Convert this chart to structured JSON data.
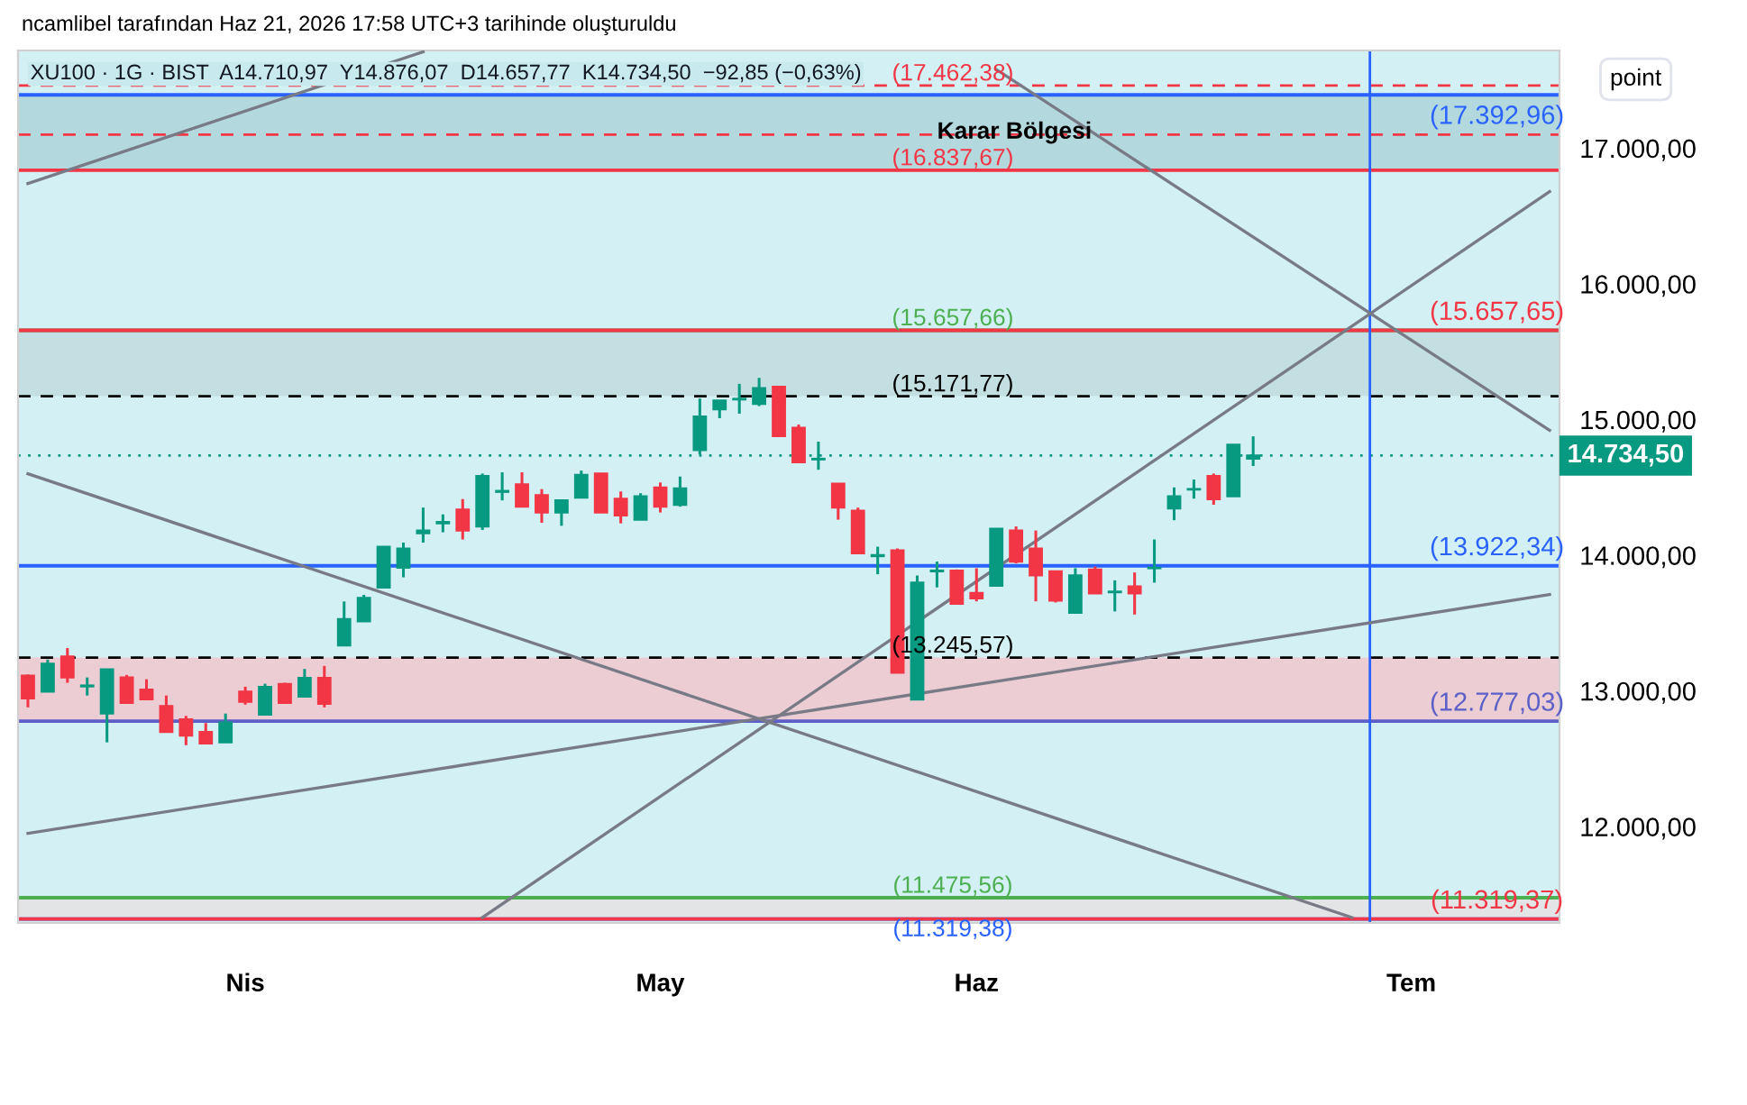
{
  "chart_data": {
    "type": "candlestick",
    "categories": [
      null,
      null,
      null,
      null,
      null,
      null,
      null,
      null,
      null,
      null,
      null,
      "Nis",
      null,
      null,
      null,
      null,
      null,
      null,
      null,
      null,
      null,
      null,
      null,
      null,
      null,
      null,
      null,
      null,
      null,
      null,
      null,
      null,
      "May",
      null,
      null,
      null,
      null,
      null,
      null,
      null,
      null,
      null,
      null,
      null,
      null,
      null,
      null,
      null,
      "Haz",
      null,
      null,
      null,
      null,
      null,
      null,
      null,
      null,
      null,
      null,
      null,
      null,
      null,
      null,
      null,
      null,
      null,
      null,
      null,
      null,
      null,
      "Tem",
      null,
      null,
      null,
      null,
      null,
      null,
      null
    ],
    "ohlc": [
      [
        13112,
        13121,
        12879,
        12945
      ],
      [
        12994,
        13231,
        12994,
        13200
      ],
      [
        13254,
        13316,
        13060,
        13099
      ],
      [
        13033,
        13099,
        12966,
        13040
      ],
      [
        12834,
        13159,
        12621,
        13159
      ],
      [
        13099,
        13118,
        12904,
        12912
      ],
      [
        13010,
        13086,
        12938,
        12938
      ],
      [
        12889,
        12966,
        12698,
        12698
      ],
      [
        12790,
        12816,
        12600,
        12670
      ],
      [
        12697,
        12763,
        12613,
        12613
      ],
      [
        12621,
        12833,
        12621,
        12767
      ],
      [
        12995,
        13031,
        12899,
        12920
      ],
      [
        12826,
        13053,
        12818,
        13030
      ],
      [
        13051,
        13060,
        12912,
        12912
      ],
      [
        12958,
        13162,
        12958,
        13096
      ],
      [
        13096,
        13184,
        12879,
        12905
      ],
      [
        13335,
        13659,
        13335,
        13530
      ],
      [
        13512,
        13708,
        13512,
        13685
      ],
      [
        13762,
        14063,
        13762,
        14063
      ],
      [
        13908,
        14093,
        13837,
        14050
      ],
      [
        14162,
        14351,
        14093,
        14182
      ],
      [
        14235,
        14301,
        14169,
        14245
      ],
      [
        14337,
        14414,
        14116,
        14182
      ],
      [
        14212,
        14602,
        14186,
        14584
      ],
      [
        14467,
        14611,
        14404,
        14474
      ],
      [
        14523,
        14611,
        14358,
        14358
      ],
      [
        14443,
        14487,
        14239,
        14315
      ],
      [
        14315,
        14404,
        14217,
        14404
      ],
      [
        14425,
        14624,
        14425,
        14593
      ],
      [
        14603,
        14603,
        14315,
        14315
      ],
      [
        14417,
        14470,
        14235,
        14293
      ],
      [
        14262,
        14457,
        14262,
        14434
      ],
      [
        14500,
        14536,
        14315,
        14358
      ],
      [
        14372,
        14580,
        14358,
        14492
      ],
      [
        14775,
        15155,
        14743,
        15022
      ],
      [
        15075,
        15141,
        15010,
        15141
      ],
      [
        15148,
        15263,
        15043,
        15153
      ],
      [
        15116,
        15307,
        15099,
        15231
      ],
      [
        15241,
        15241,
        14878,
        14878
      ],
      [
        14940,
        14963,
        14685,
        14685
      ],
      [
        14706,
        14837,
        14630,
        14711
      ],
      [
        14527,
        14527,
        14262,
        14351
      ],
      [
        14328,
        14351,
        14014,
        14014
      ],
      [
        13993,
        14063,
        13860,
        14001
      ],
      [
        14036,
        14050,
        13134,
        13134
      ],
      [
        12936,
        13851,
        12936,
        13798
      ],
      [
        13881,
        13953,
        13763,
        13887
      ],
      [
        13887,
        13895,
        13643,
        13643
      ],
      [
        13722,
        13904,
        13660,
        13682
      ],
      [
        13775,
        14196,
        13775,
        14196
      ],
      [
        14182,
        14212,
        13940,
        13953
      ],
      [
        14050,
        14182,
        13660,
        13851
      ],
      [
        13881,
        13887,
        13652,
        13665
      ],
      [
        13576,
        13904,
        13576,
        13851
      ],
      [
        13895,
        13917,
        13718,
        13718
      ],
      [
        13727,
        13815,
        13586,
        13732
      ],
      [
        13771,
        13873,
        13563,
        13718
      ],
      [
        13904,
        14116,
        13798,
        13908
      ],
      [
        14345,
        14500,
        14258,
        14434
      ],
      [
        14484,
        14558,
        14417,
        14488
      ],
      [
        14584,
        14602,
        14372,
        14412
      ],
      [
        14434,
        14815,
        14434,
        14815
      ],
      [
        14710.97,
        14876.07,
        14657.77,
        14734.5
      ],
      null,
      null,
      null,
      null,
      null,
      null,
      null,
      null,
      null,
      null,
      null,
      null,
      null,
      null,
      null
    ],
    "colors": [
      "#f23645",
      "#089981",
      "#f23645",
      "#089981",
      "#089981",
      "#f23645",
      "#f23645",
      "#f23645",
      "#f23645",
      "#f23645",
      "#089981",
      "#f23645",
      "#089981",
      "#f23645",
      "#089981",
      "#f23645",
      "#089981",
      "#089981",
      "#089981",
      "#089981",
      "#089981",
      "#089981",
      "#f23645",
      "#089981",
      "#089981",
      "#f23645",
      "#f23645",
      "#089981",
      "#089981",
      "#f23645",
      "#f23645",
      "#089981",
      "#f23645",
      "#089981",
      "#089981",
      "#089981",
      "#089981",
      "#089981",
      "#f23645",
      "#f23645",
      "#089981",
      "#f23645",
      "#f23645",
      "#089981",
      "#f23645",
      "#089981",
      "#089981",
      "#f23645",
      "#f23645",
      "#089981",
      "#f23645",
      "#f23645",
      "#f23645",
      "#089981",
      "#f23645",
      "#089981",
      "#f23645",
      "#089981",
      "#089981",
      "#089981",
      "#f23645",
      "#089981",
      "#089981",
      null,
      null,
      null,
      null,
      null,
      null,
      null,
      null,
      null,
      null,
      null,
      null,
      null,
      null,
      null
    ],
    "series": [
      {
        "type": "line",
        "values": [
          16740,
          null,
          null,
          null,
          null,
          null,
          null,
          null,
          null,
          null,
          null,
          null,
          null,
          null,
          null,
          null,
          null,
          null,
          null,
          null,
          17710,
          null,
          null,
          null,
          null,
          null,
          null,
          null,
          null,
          null,
          null,
          null,
          null,
          null,
          null,
          null,
          null,
          null,
          null,
          null,
          null,
          null,
          null,
          null,
          null,
          null,
          null,
          null,
          null,
          null,
          null,
          null,
          null,
          null,
          null,
          null,
          null,
          null,
          null,
          null,
          null,
          null,
          null,
          null,
          null,
          null,
          null,
          null,
          null,
          null,
          null,
          null,
          null,
          null,
          null,
          null,
          null,
          null
        ],
        "color": "#787b86"
      },
      {
        "type": "line",
        "values": [
          14600,
          null,
          null,
          null,
          null,
          null,
          null,
          null,
          null,
          null,
          null,
          null,
          null,
          null,
          null,
          null,
          null,
          null,
          null,
          null,
          null,
          null,
          null,
          null,
          null,
          null,
          null,
          null,
          null,
          null,
          null,
          null,
          null,
          null,
          null,
          null,
          null,
          null,
          null,
          null,
          null,
          null,
          null,
          null,
          null,
          null,
          null,
          null,
          null,
          null,
          null,
          null,
          null,
          null,
          null,
          null,
          null,
          null,
          null,
          null,
          null,
          null,
          null,
          null,
          null,
          null,
          null,
          11330,
          null,
          null,
          null,
          null,
          null,
          null,
          null,
          null,
          null,
          null
        ],
        "color": "#787b86"
      },
      {
        "type": "line",
        "values": [
          null,
          null,
          null,
          null,
          null,
          null,
          null,
          null,
          null,
          null,
          null,
          null,
          null,
          null,
          null,
          null,
          null,
          null,
          null,
          null,
          null,
          null,
          null,
          11330,
          null,
          null,
          null,
          null,
          null,
          null,
          null,
          null,
          null,
          null,
          null,
          null,
          null,
          null,
          null,
          null,
          null,
          null,
          null,
          null,
          null,
          null,
          null,
          null,
          null,
          null,
          null,
          null,
          null,
          null,
          null,
          null,
          null,
          null,
          null,
          null,
          null,
          null,
          null,
          null,
          null,
          null,
          null,
          null,
          null,
          null,
          null,
          null,
          null,
          null,
          null,
          null,
          null,
          16680
        ],
        "color": "#787b86"
      },
      {
        "type": "line",
        "values": [
          11950,
          null,
          null,
          null,
          null,
          null,
          null,
          null,
          null,
          null,
          null,
          null,
          null,
          null,
          null,
          null,
          null,
          null,
          null,
          null,
          null,
          null,
          null,
          null,
          null,
          null,
          null,
          null,
          null,
          null,
          null,
          null,
          null,
          null,
          null,
          null,
          null,
          null,
          null,
          null,
          null,
          null,
          null,
          null,
          null,
          null,
          null,
          null,
          null,
          null,
          null,
          null,
          null,
          null,
          null,
          null,
          null,
          null,
          null,
          null,
          null,
          null,
          null,
          null,
          null,
          null,
          null,
          null,
          null,
          null,
          null,
          null,
          null,
          null,
          null,
          null,
          null,
          13710
        ],
        "color": "#787b86"
      },
      {
        "type": "line",
        "values": [
          null,
          null,
          null,
          null,
          null,
          null,
          null,
          null,
          null,
          null,
          null,
          null,
          null,
          null,
          null,
          null,
          null,
          null,
          null,
          null,
          null,
          null,
          null,
          null,
          null,
          null,
          null,
          null,
          null,
          null,
          null,
          null,
          null,
          null,
          null,
          null,
          null,
          null,
          null,
          null,
          null,
          null,
          null,
          null,
          null,
          null,
          null,
          null,
          null,
          17580,
          null,
          null,
          null,
          null,
          null,
          null,
          null,
          null,
          null,
          null,
          null,
          null,
          null,
          null,
          null,
          null,
          null,
          null,
          null,
          null,
          null,
          null,
          null,
          null,
          null,
          null,
          null,
          14920
        ],
        "color": "#787b86"
      }
    ],
    "ylim": [
      11290,
      17720
    ],
    "yticks": [
      {
        "value": 12000,
        "label": "12.000,00"
      },
      {
        "value": 13000,
        "label": "13.000,00"
      },
      {
        "value": 14000,
        "label": "14.000,00"
      },
      {
        "value": 15000,
        "label": "15.000,00"
      },
      {
        "value": 16000,
        "label": "16.000,00"
      },
      {
        "value": 17000,
        "label": "17.000,00"
      }
    ],
    "bands": [
      {
        "axis": "y",
        "from": 16837.67,
        "to": 17392.96,
        "label": "Karar Bölgesi",
        "color": "#b3d9df"
      },
      {
        "axis": "y",
        "from": 15171.77,
        "to": 15657.66,
        "color": "#c3dfe2"
      },
      {
        "axis": "y",
        "from": 12777.03,
        "to": 13245.57,
        "color": "#eccdd4"
      },
      {
        "axis": "y",
        "from": 11319.38,
        "to": 11475.56,
        "color": "#e2e4e6"
      }
    ],
    "ref_lines": [
      {
        "axis": "y",
        "value": 17462.38,
        "label": "(17.462,38)",
        "color": "#f23645",
        "line_style": "dashed"
      },
      {
        "axis": "y",
        "value": 17392.96,
        "label": "(17.392,96)",
        "color": "#2962ff",
        "line_style": "solid"
      },
      {
        "axis": "y",
        "value": 17100,
        "color": "#f23645",
        "line_style": "dashed"
      },
      {
        "axis": "y",
        "value": 16837.67,
        "label": "(16.837,67)",
        "color": "#f23645",
        "line_style": "solid"
      },
      {
        "axis": "y",
        "value": 15657.66,
        "label": "(15.657,66)",
        "color": "#4caf50",
        "line_style": "solid"
      },
      {
        "axis": "y",
        "value": 15657.65,
        "label": "(15.657,65)",
        "color": "#f23645",
        "line_style": "solid"
      },
      {
        "axis": "y",
        "value": 15171.77,
        "label": "(15.171,77)",
        "color": "#000000",
        "line_style": "dashed"
      },
      {
        "axis": "y",
        "value": 14734.5,
        "label": "14.734,50",
        "color": "#089981",
        "line_style": "dotted"
      },
      {
        "axis": "y",
        "value": 13922.34,
        "label": "(13.922,34)",
        "color": "#2962ff",
        "line_style": "solid"
      },
      {
        "axis": "y",
        "value": 13245.57,
        "label": "(13.245,57)",
        "color": "#000000",
        "line_style": "dashed"
      },
      {
        "axis": "y",
        "value": 12777.03,
        "label": "(12.777,03)",
        "color": "#5b5fc7",
        "line_style": "solid"
      },
      {
        "axis": "y",
        "value": 11475.56,
        "label": "(11.475,56)",
        "color": "#4caf50",
        "line_style": "solid"
      },
      {
        "axis": "y",
        "value": 11319.38,
        "label": "(11.319,38)",
        "color": "#2962ff",
        "line_style": "solid"
      },
      {
        "axis": "y",
        "value": 11319.37,
        "label": "(11.319,37)",
        "color": "#f23645",
        "line_style": "solid"
      }
    ],
    "annotations": [
      "ncamlibel tarafından Haz 21, 2026 17:58 UTC+3 tarihinde oluşturuldu",
      "XU100 · 1G · BIST  A14.710,97  Y14.876,07  D14.657,77  K14.734,50  −92,85 (−0,63%)",
      "point"
    ],
    "grid": false
  }
}
